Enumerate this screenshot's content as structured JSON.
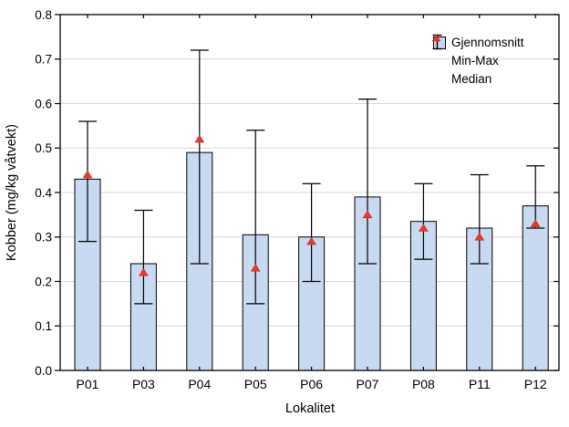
{
  "chart_data": {
    "type": "bar",
    "title": "",
    "xlabel": "Lokalitet",
    "ylabel": "Kobber (mg/kg våtvekt)",
    "categories": [
      "P01",
      "P03",
      "P04",
      "P05",
      "P06",
      "P07",
      "P08",
      "P11",
      "P12"
    ],
    "series": [
      {
        "name": "Gjennomsnitt",
        "role": "mean",
        "values": [
          0.43,
          0.24,
          0.49,
          0.305,
          0.3,
          0.39,
          0.335,
          0.32,
          0.37
        ]
      },
      {
        "name": "Min",
        "role": "min",
        "values": [
          0.29,
          0.15,
          0.24,
          0.15,
          0.2,
          0.24,
          0.25,
          0.24,
          0.32
        ]
      },
      {
        "name": "Max",
        "role": "max",
        "values": [
          0.56,
          0.36,
          0.72,
          0.54,
          0.42,
          0.61,
          0.42,
          0.44,
          0.46
        ]
      },
      {
        "name": "Median",
        "role": "median",
        "values": [
          0.44,
          0.22,
          0.52,
          0.23,
          0.29,
          0.35,
          0.32,
          0.3,
          0.33
        ]
      }
    ],
    "ylim": [
      0.0,
      0.8
    ],
    "ytick_step": 0.1,
    "grid": "horizontal",
    "legend": {
      "position": "top-right",
      "items": [
        {
          "label": "Gjennomsnitt",
          "glyph": "bar-swatch"
        },
        {
          "label": "Min-Max",
          "glyph": "error-bar"
        },
        {
          "label": "Median",
          "glyph": "triangle"
        }
      ]
    },
    "colors": {
      "bar_fill": "#C8D9F0",
      "bar_stroke": "#000000",
      "whisker": "#000000",
      "median_marker": "#E8392F",
      "median_marker_edge": "#C32222",
      "grid": "#D9D9D9",
      "frame": "#000000",
      "text": "#000000",
      "background": "#FFFFFF"
    }
  }
}
